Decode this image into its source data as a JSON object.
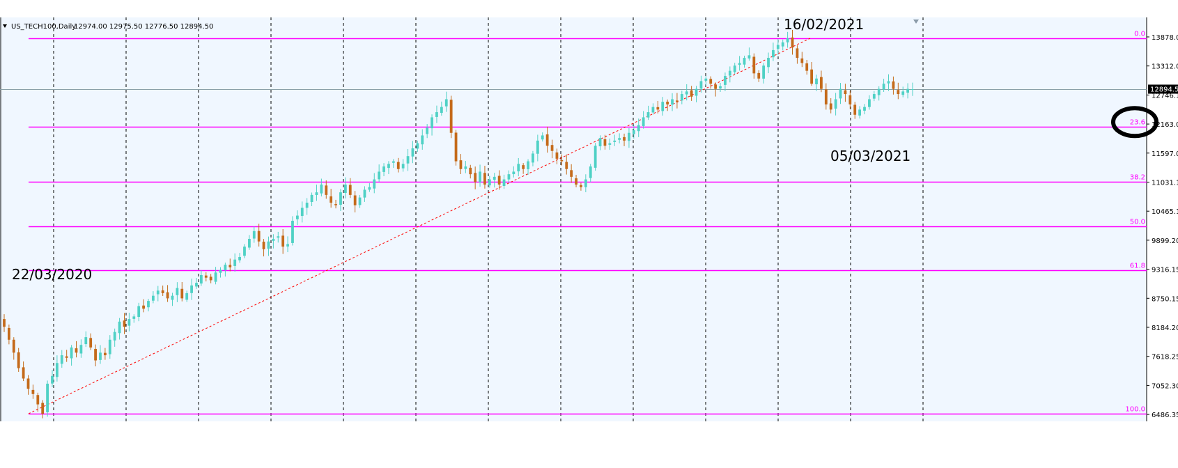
{
  "chart_data": {
    "type": "candlestick",
    "symbol": "US_TECH100",
    "timeframe": "Daily",
    "header": {
      "symbol_label": "US_TECH100,Daily",
      "ohlc_text": "12974.00 12975.50 12776.50 12894.50"
    },
    "ylim": [
      6200,
      14500
    ],
    "y_ticks": [
      "13878.00",
      "13312.05",
      "12746.10",
      "12163.00",
      "11597.05",
      "11031.10",
      "10465.15",
      "9899.20",
      "9316.15",
      "8750.15",
      "8184.20",
      "7618.25",
      "7052.30",
      "6486.35"
    ],
    "y_tick_values": [
      13878.0,
      13312.05,
      12746.1,
      12163.0,
      11597.05,
      11031.1,
      10465.15,
      9899.2,
      9316.15,
      8750.15,
      8184.2,
      7618.25,
      7052.3,
      6486.35
    ],
    "current_price": {
      "label": "12894.50",
      "value": 12894.5
    },
    "fibonacci": {
      "high": 13878.0,
      "low": 6620.0,
      "levels": [
        {
          "label": "0.0",
          "ratio": 0.0
        },
        {
          "label": "23.6",
          "ratio": 0.236
        },
        {
          "label": "38.2",
          "ratio": 0.382
        },
        {
          "label": "50.0",
          "ratio": 0.5
        },
        {
          "label": "61.8",
          "ratio": 0.618
        },
        {
          "label": "100.0",
          "ratio": 1.0
        }
      ]
    },
    "trendline": {
      "from": {
        "bar": 28,
        "price": 6620
      },
      "to": {
        "bar": 750,
        "price": 13878
      },
      "style": "dotted",
      "color": "#ff0000"
    },
    "period_separators": 13,
    "annotations": [
      {
        "text": "22/03/2020",
        "anchor": "low"
      },
      {
        "text": "16/02/2021",
        "anchor": "high"
      },
      {
        "text": "05/03/2021",
        "anchor": "pullback-low"
      }
    ],
    "circled_level": "23.6",
    "colors": {
      "background": "#f0f7ff",
      "bull": "#4fd1c5",
      "bear": "#c46a1a",
      "fib": "#ff00ff",
      "separator": "#000000",
      "trend": "#ff0000",
      "current_line": "#8aa0a8"
    },
    "closes": [
      8300,
      8050,
      7800,
      7500,
      7300,
      7100,
      7000,
      6800,
      6620,
      7200,
      7350,
      7600,
      7750,
      7700,
      7900,
      7800,
      7950,
      8100,
      7900,
      7650,
      7800,
      7750,
      8050,
      8200,
      8400,
      8300,
      8450,
      8500,
      8700,
      8650,
      8800,
      8900,
      9000,
      8950,
      8850,
      8900,
      9050,
      8850,
      8950,
      9100,
      9150,
      9300,
      9250,
      9200,
      9350,
      9400,
      9500,
      9450,
      9600,
      9650,
      9850,
      10000,
      10150,
      9950,
      9800,
      9950,
      10000,
      10050,
      9850,
      9900,
      10350,
      10450,
      10600,
      10700,
      10850,
      10900,
      11050,
      10850,
      10700,
      10650,
      10900,
      11050,
      10850,
      10650,
      10800,
      10950,
      11000,
      11150,
      11300,
      11400,
      11450,
      11500,
      11350,
      11450,
      11600,
      11750,
      11850,
      12000,
      12150,
      12350,
      12450,
      12550,
      12700,
      12050,
      11500,
      11350,
      11400,
      11250,
      11100,
      11300,
      11050,
      11150,
      11200,
      11050,
      11150,
      11250,
      11300,
      11450,
      11350,
      11500,
      11650,
      11900,
      12000,
      11800,
      11700,
      11550,
      11500,
      11350,
      11200,
      11050,
      11000,
      11150,
      11400,
      11800,
      11950,
      11800,
      11850,
      11900,
      11950,
      11900,
      12050,
      12100,
      12200,
      12350,
      12450,
      12550,
      12500,
      12650,
      12600,
      12700,
      12650,
      12800,
      12850,
      12750,
      12900,
      13050,
      13100,
      13000,
      12900,
      12950,
      13150,
      13250,
      13350,
      13400,
      13500,
      13550,
      13200,
      13100,
      13350,
      13500,
      13650,
      13750,
      13800,
      13878,
      13700,
      13500,
      13400,
      13250,
      13000,
      13100,
      12900,
      12600,
      12500,
      12700,
      12900,
      12800,
      12600,
      12400,
      12500,
      12550,
      12700,
      12800,
      12900,
      13000,
      13050,
      12900,
      12800,
      12850,
      12900,
      12894.5
    ]
  }
}
